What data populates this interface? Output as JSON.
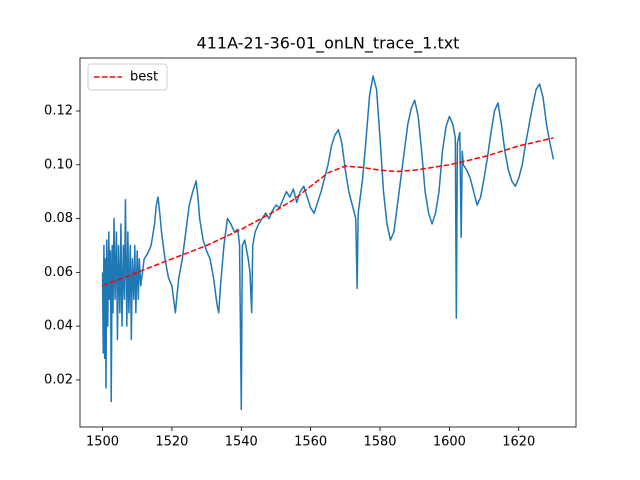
{
  "chart_data": {
    "type": "line",
    "title": "411A-21-36-01_onLN_trace_1.txt",
    "xlim": [
      1493.5,
      1636.5
    ],
    "xticks": [
      1500,
      1520,
      1540,
      1560,
      1580,
      1600,
      1620
    ],
    "ylim": [
      0.0025,
      0.1397
    ],
    "yticks": [
      0.02,
      0.04,
      0.06,
      0.08,
      {
        "value": 0.1,
        "label": "0.10"
      },
      0.12
    ],
    "legend": "upper left",
    "series": [
      {
        "color": "#1f77b4",
        "linestyle": "solid",
        "x": [
          1500,
          1500.2,
          1500.4,
          1500.6,
          1500.8,
          1501,
          1501.2,
          1501.5,
          1501.8,
          1502,
          1502.3,
          1502.5,
          1502.8,
          1503,
          1503.3,
          1503.6,
          1504,
          1504.3,
          1504.6,
          1505,
          1505.3,
          1505.6,
          1506,
          1506.3,
          1506.6,
          1507,
          1507.3,
          1507.6,
          1508,
          1508.3,
          1508.6,
          1509,
          1509.3,
          1509.6,
          1510,
          1510.3,
          1510.6,
          1511,
          1511.5,
          1512,
          1513,
          1514,
          1515,
          1515.5,
          1516,
          1516.5,
          1517,
          1518,
          1519,
          1520,
          1521,
          1521.5,
          1522,
          1523,
          1524,
          1525,
          1526,
          1527,
          1527.5,
          1528,
          1529,
          1530,
          1531,
          1532,
          1533,
          1533.5,
          1534,
          1535,
          1536,
          1537,
          1538,
          1539,
          1539.5,
          1540,
          1540.3,
          1541,
          1542,
          1542.5,
          1543,
          1543.3,
          1544,
          1545,
          1546,
          1547,
          1548,
          1549,
          1550,
          1551,
          1552,
          1553,
          1554,
          1555,
          1556,
          1557,
          1558,
          1559,
          1560,
          1561,
          1562,
          1563,
          1564,
          1565,
          1566,
          1567,
          1568,
          1569,
          1570,
          1571,
          1572,
          1573,
          1573.4,
          1573.7,
          1574,
          1575,
          1576,
          1577,
          1578,
          1579,
          1580,
          1581,
          1582,
          1583,
          1584,
          1585,
          1586,
          1587,
          1588,
          1589,
          1590,
          1591,
          1592,
          1593,
          1594,
          1595,
          1596,
          1597,
          1598,
          1599,
          1600,
          1601,
          1601.7,
          1602,
          1602.3,
          1603,
          1603.4,
          1603.7,
          1604,
          1605,
          1606,
          1607,
          1608,
          1609,
          1610,
          1611,
          1612,
          1613,
          1614,
          1615,
          1616,
          1617,
          1618,
          1619,
          1620,
          1621,
          1622,
          1623,
          1624,
          1625,
          1626,
          1627,
          1628,
          1629,
          1630
        ],
        "values": [
          0.06,
          0.03,
          0.07,
          0.028,
          0.065,
          0.017,
          0.072,
          0.04,
          0.075,
          0.05,
          0.068,
          0.012,
          0.07,
          0.045,
          0.08,
          0.05,
          0.075,
          0.035,
          0.07,
          0.045,
          0.078,
          0.04,
          0.07,
          0.05,
          0.087,
          0.04,
          0.075,
          0.045,
          0.07,
          0.035,
          0.065,
          0.05,
          0.07,
          0.045,
          0.068,
          0.05,
          0.065,
          0.055,
          0.06,
          0.065,
          0.067,
          0.07,
          0.078,
          0.085,
          0.088,
          0.082,
          0.075,
          0.065,
          0.058,
          0.055,
          0.045,
          0.052,
          0.058,
          0.065,
          0.075,
          0.085,
          0.09,
          0.094,
          0.088,
          0.08,
          0.072,
          0.068,
          0.065,
          0.058,
          0.048,
          0.045,
          0.055,
          0.07,
          0.08,
          0.078,
          0.075,
          0.076,
          0.07,
          0.009,
          0.07,
          0.072,
          0.065,
          0.06,
          0.045,
          0.07,
          0.075,
          0.078,
          0.08,
          0.082,
          0.08,
          0.083,
          0.085,
          0.084,
          0.087,
          0.09,
          0.088,
          0.091,
          0.086,
          0.09,
          0.092,
          0.088,
          0.084,
          0.082,
          0.086,
          0.09,
          0.095,
          0.1,
          0.107,
          0.111,
          0.113,
          0.108,
          0.098,
          0.09,
          0.085,
          0.08,
          0.054,
          0.082,
          0.085,
          0.095,
          0.11,
          0.126,
          0.133,
          0.128,
          0.11,
          0.09,
          0.078,
          0.072,
          0.075,
          0.085,
          0.095,
          0.105,
          0.115,
          0.121,
          0.124,
          0.118,
          0.105,
          0.09,
          0.082,
          0.078,
          0.082,
          0.09,
          0.105,
          0.114,
          0.118,
          0.115,
          0.11,
          0.043,
          0.108,
          0.112,
          0.073,
          0.105,
          0.1,
          0.098,
          0.095,
          0.09,
          0.085,
          0.088,
          0.095,
          0.103,
          0.112,
          0.12,
          0.123,
          0.115,
          0.105,
          0.098,
          0.094,
          0.092,
          0.095,
          0.1,
          0.108,
          0.115,
          0.122,
          0.128,
          0.13,
          0.125,
          0.115,
          0.108,
          0.102
        ]
      },
      {
        "name": "best",
        "color": "#ff0000",
        "linestyle": "dashed",
        "x": [
          1500,
          1505,
          1510,
          1515,
          1520,
          1525,
          1530,
          1535,
          1540,
          1545,
          1550,
          1555,
          1560,
          1565,
          1570,
          1575,
          1580,
          1585,
          1590,
          1595,
          1600,
          1605,
          1610,
          1615,
          1620,
          1625,
          1630
        ],
        "values": [
          0.055,
          0.0575,
          0.06,
          0.0625,
          0.065,
          0.0675,
          0.07,
          0.073,
          0.076,
          0.0795,
          0.083,
          0.087,
          0.092,
          0.097,
          0.0995,
          0.099,
          0.098,
          0.0975,
          0.098,
          0.099,
          0.1,
          0.1015,
          0.103,
          0.105,
          0.107,
          0.1085,
          0.11
        ]
      }
    ]
  }
}
